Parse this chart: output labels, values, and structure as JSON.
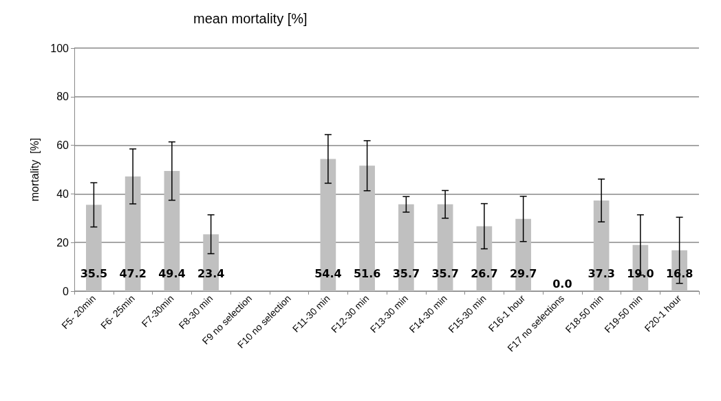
{
  "chart_data": {
    "type": "bar",
    "title": "mean mortality [%]",
    "ylabel": "mortality  [%]",
    "categories": [
      "F5- 20min",
      "F6- 25min",
      "F7-30min",
      "F8-30 min",
      "F9 no selection",
      "F10 no selection",
      "F11-30 min",
      "F12-30 min",
      "F13-30 min",
      "F14-30 min",
      "F15-30 min",
      "F16-1 hour",
      "F17 no selections",
      "F18-50 min",
      "F19-50 min",
      "F20-1 hour"
    ],
    "values": [
      35.5,
      47.2,
      49.4,
      23.4,
      null,
      null,
      54.4,
      51.6,
      35.7,
      35.7,
      26.7,
      29.7,
      0.0,
      37.3,
      19.0,
      16.8
    ],
    "errors": [
      9.1,
      11.3,
      12,
      8,
      null,
      null,
      10,
      10.3,
      3.2,
      5.7,
      9.3,
      9.3,
      null,
      8.8,
      12.4,
      13.6
    ],
    "value_labels": [
      "35.5",
      "47.2",
      "49.4",
      "23.4",
      null,
      null,
      "54.4",
      "51.6",
      "35.7",
      "35.7",
      "26.7",
      "29.7",
      "0.0",
      "37.3",
      "19.0",
      "16.8"
    ],
    "color": "#c0c0c0",
    "ylim": [
      0,
      100
    ],
    "yticks": [
      0,
      20,
      40,
      60,
      80,
      100
    ],
    "grid": "y"
  }
}
